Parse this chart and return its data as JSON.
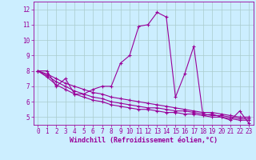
{
  "x": [
    0,
    1,
    2,
    3,
    4,
    5,
    6,
    7,
    8,
    9,
    10,
    11,
    12,
    13,
    14,
    15,
    16,
    17,
    18,
    19,
    20,
    21,
    22,
    23
  ],
  "line1": [
    8.0,
    8.0,
    7.0,
    7.5,
    6.5,
    6.5,
    6.8,
    7.0,
    7.0,
    8.5,
    9.0,
    10.9,
    11.0,
    11.8,
    11.5,
    6.3,
    7.8,
    9.6,
    5.1,
    5.2,
    5.0,
    4.8,
    5.4,
    4.6
  ],
  "line2": [
    8.0,
    7.8,
    7.5,
    7.2,
    7.0,
    6.8,
    6.6,
    6.5,
    6.3,
    6.2,
    6.1,
    6.0,
    5.9,
    5.8,
    5.7,
    5.6,
    5.5,
    5.4,
    5.3,
    5.3,
    5.2,
    5.1,
    5.0,
    5.0
  ],
  "line3": [
    8.0,
    7.7,
    7.3,
    7.0,
    6.7,
    6.5,
    6.3,
    6.2,
    6.0,
    5.9,
    5.8,
    5.7,
    5.6,
    5.6,
    5.5,
    5.4,
    5.4,
    5.3,
    5.2,
    5.1,
    5.1,
    5.0,
    4.9,
    4.9
  ],
  "line4": [
    8.0,
    7.6,
    7.1,
    6.8,
    6.5,
    6.3,
    6.1,
    6.0,
    5.8,
    5.7,
    5.6,
    5.5,
    5.5,
    5.4,
    5.3,
    5.3,
    5.2,
    5.2,
    5.1,
    5.0,
    5.0,
    4.9,
    4.8,
    4.8
  ],
  "color": "#990099",
  "bg_color": "#cceeff",
  "grid_color": "#aacccc",
  "xlabel": "Windchill (Refroidissement éolien,°C)",
  "xlim": [
    -0.5,
    23.5
  ],
  "ylim": [
    4.5,
    12.5
  ],
  "yticks": [
    5,
    6,
    7,
    8,
    9,
    10,
    11,
    12
  ],
  "xticks": [
    0,
    1,
    2,
    3,
    4,
    5,
    6,
    7,
    8,
    9,
    10,
    11,
    12,
    13,
    14,
    15,
    16,
    17,
    18,
    19,
    20,
    21,
    22,
    23
  ],
  "fontsize_tick": 5.5,
  "fontsize_xlabel": 6.0,
  "marker": "+",
  "markersize": 3.0,
  "linewidth": 0.8
}
